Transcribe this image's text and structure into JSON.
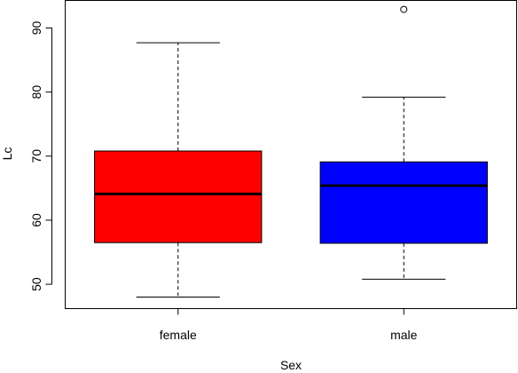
{
  "chart_data": {
    "type": "box",
    "title": "",
    "xlabel": "Sex",
    "ylabel": "Lc",
    "categories": [
      "female",
      "male"
    ],
    "ylim": [
      46.2,
      94.3
    ],
    "yticks": [
      50,
      60,
      70,
      80,
      90
    ],
    "boxes": [
      {
        "category": "female",
        "color": "#ff0000",
        "whisker_low": 48.0,
        "q1": 56.5,
        "median": 64.1,
        "q3": 70.8,
        "whisker_high": 87.7,
        "outliers": []
      },
      {
        "category": "male",
        "color": "#0000ff",
        "whisker_low": 50.8,
        "q1": 56.4,
        "median": 65.4,
        "q3": 69.1,
        "whisker_high": 79.2,
        "outliers": [
          92.9
        ]
      }
    ],
    "grid": false,
    "legend": "none"
  }
}
